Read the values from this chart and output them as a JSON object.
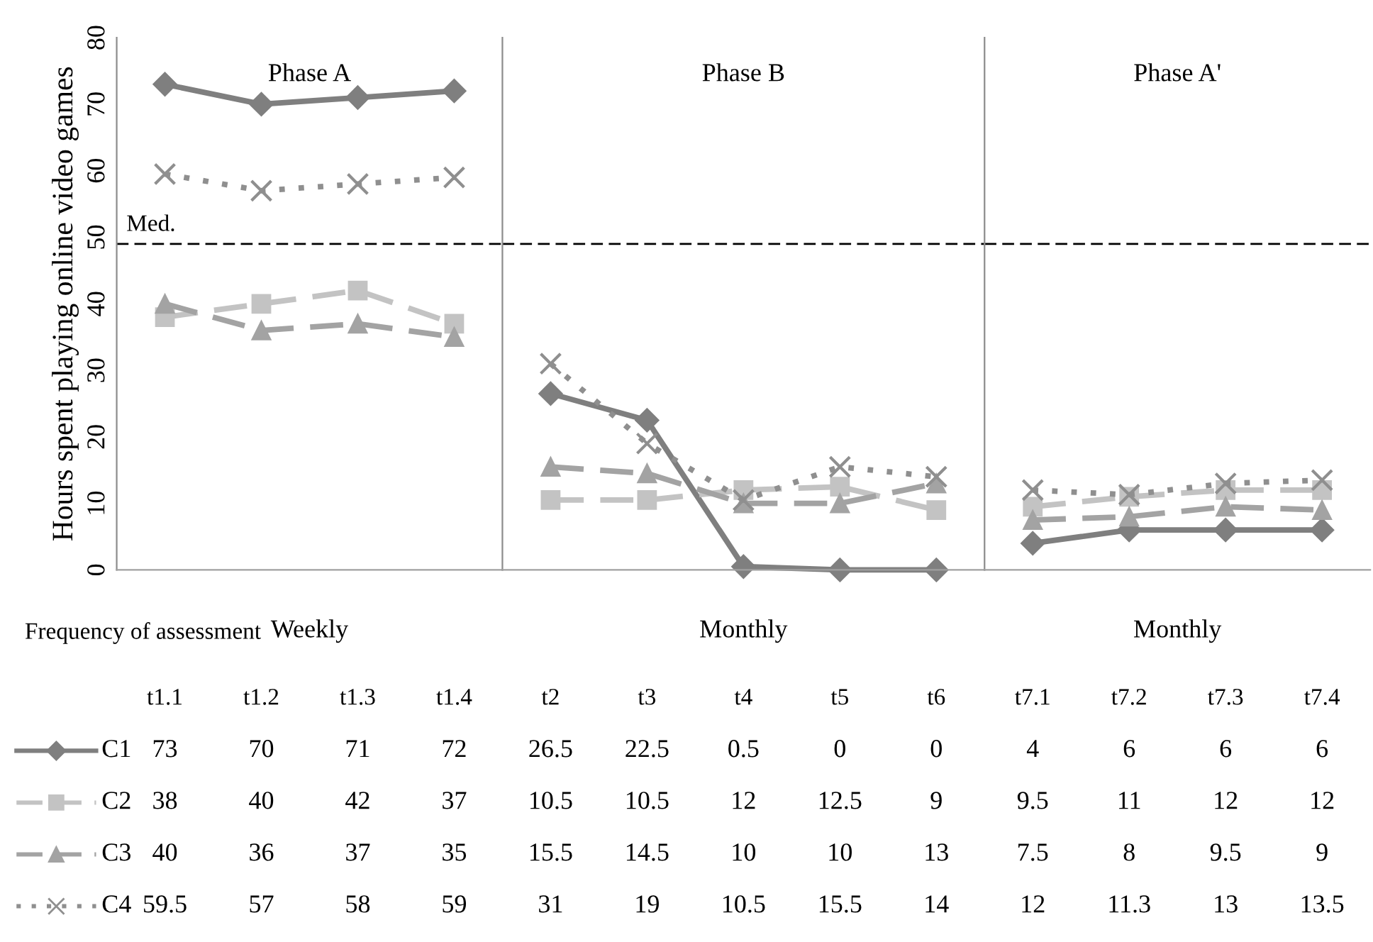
{
  "chart_data": [
    {
      "type": "line",
      "title": "Phase A",
      "ylabel": "Hours spent playing online video games",
      "categories": [
        "t1.1",
        "t1.2",
        "t1.3",
        "t1.4"
      ],
      "series": [
        {
          "name": "C1",
          "color": "#7f7f7f",
          "marker": "diamond",
          "line_style": "solid",
          "values": [
            73,
            70,
            71,
            72
          ]
        },
        {
          "name": "C2",
          "color": "#c3c3c3",
          "marker": "square",
          "line_style": "dashed",
          "values": [
            38,
            40,
            42,
            37
          ]
        },
        {
          "name": "C3",
          "color": "#a3a3a3",
          "marker": "triangle",
          "line_style": "dashed",
          "values": [
            40,
            36,
            37,
            35
          ]
        },
        {
          "name": "C4",
          "color": "#8f8f8f",
          "marker": "cross",
          "line_style": "dotted",
          "values": [
            59.5,
            57,
            58,
            59
          ]
        }
      ],
      "ref_lines": [
        {
          "axis": "y",
          "value": 49,
          "label": "Med.",
          "color": "#000000",
          "line_style": "dashed"
        }
      ],
      "annotations": [
        "Frequency of assessment",
        "Weekly"
      ],
      "ylim": [
        0,
        80
      ],
      "yticks": [
        0,
        10,
        20,
        30,
        40,
        50,
        60,
        70,
        80
      ],
      "data_labels": true,
      "legend": "bottom left"
    },
    {
      "type": "line",
      "title": "Phase B",
      "categories": [
        "t2",
        "t3",
        "t4",
        "t5",
        "t6"
      ],
      "series": [
        {
          "color": "#7f7f7f",
          "marker": "diamond",
          "line_style": "solid",
          "values": [
            26.5,
            22.5,
            0.5,
            0,
            0
          ]
        },
        {
          "color": "#c3c3c3",
          "marker": "square",
          "line_style": "dashed",
          "values": [
            10.5,
            10.5,
            12,
            12.5,
            9
          ]
        },
        {
          "color": "#a3a3a3",
          "marker": "triangle",
          "line_style": "dashed",
          "values": [
            15.5,
            14.5,
            10,
            10,
            13
          ]
        },
        {
          "color": "#8f8f8f",
          "marker": "cross",
          "line_style": "dotted",
          "values": [
            31,
            19,
            10.5,
            15.5,
            14
          ]
        }
      ],
      "ref_lines": [
        {
          "axis": "y",
          "value": 49,
          "color": "#000000",
          "line_style": "dashed"
        }
      ],
      "annotations": [
        "Monthly"
      ],
      "ylim": [
        0,
        80
      ],
      "tick_labels": "x",
      "data_labels": true
    },
    {
      "type": "line",
      "title": "Phase A'",
      "categories": [
        "t7.1",
        "t7.2",
        "t7.3",
        "t7.4"
      ],
      "series": [
        {
          "color": "#7f7f7f",
          "marker": "diamond",
          "line_style": "solid",
          "values": [
            4,
            6,
            6,
            6
          ]
        },
        {
          "color": "#c3c3c3",
          "marker": "square",
          "line_style": "dashed",
          "values": [
            9.5,
            11,
            12,
            12
          ]
        },
        {
          "color": "#a3a3a3",
          "marker": "triangle",
          "line_style": "dashed",
          "values": [
            7.5,
            8,
            9.5,
            9
          ]
        },
        {
          "color": "#8f8f8f",
          "marker": "cross",
          "line_style": "dotted",
          "values": [
            12,
            11.3,
            13,
            13.5
          ]
        }
      ],
      "ref_lines": [
        {
          "axis": "y",
          "value": 49,
          "color": "#000000",
          "line_style": "dashed"
        }
      ],
      "annotations": [
        "Monthly"
      ],
      "ylim": [
        0,
        80
      ],
      "tick_labels": "x",
      "data_labels": true
    }
  ]
}
